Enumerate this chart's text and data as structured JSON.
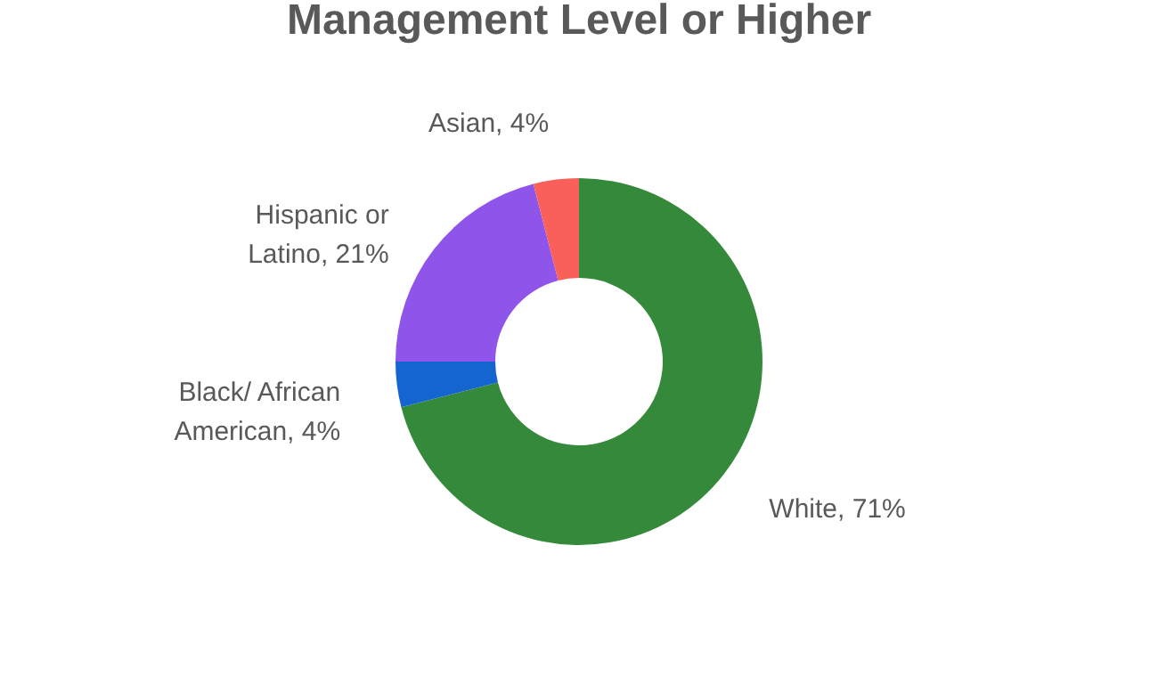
{
  "chart_data": {
    "type": "donut",
    "title": "Management Level or Higher",
    "categories": [
      "White",
      "Black/ African American",
      "Hispanic or Latino",
      "Asian"
    ],
    "values": [
      71,
      4,
      21,
      4
    ],
    "value_labels": [
      "71%",
      "4%",
      "21%",
      "4%"
    ],
    "colors": [
      "#348a3a",
      "#1565d0",
      "#8f55ea",
      "#f9605a"
    ],
    "legend": false
  }
}
